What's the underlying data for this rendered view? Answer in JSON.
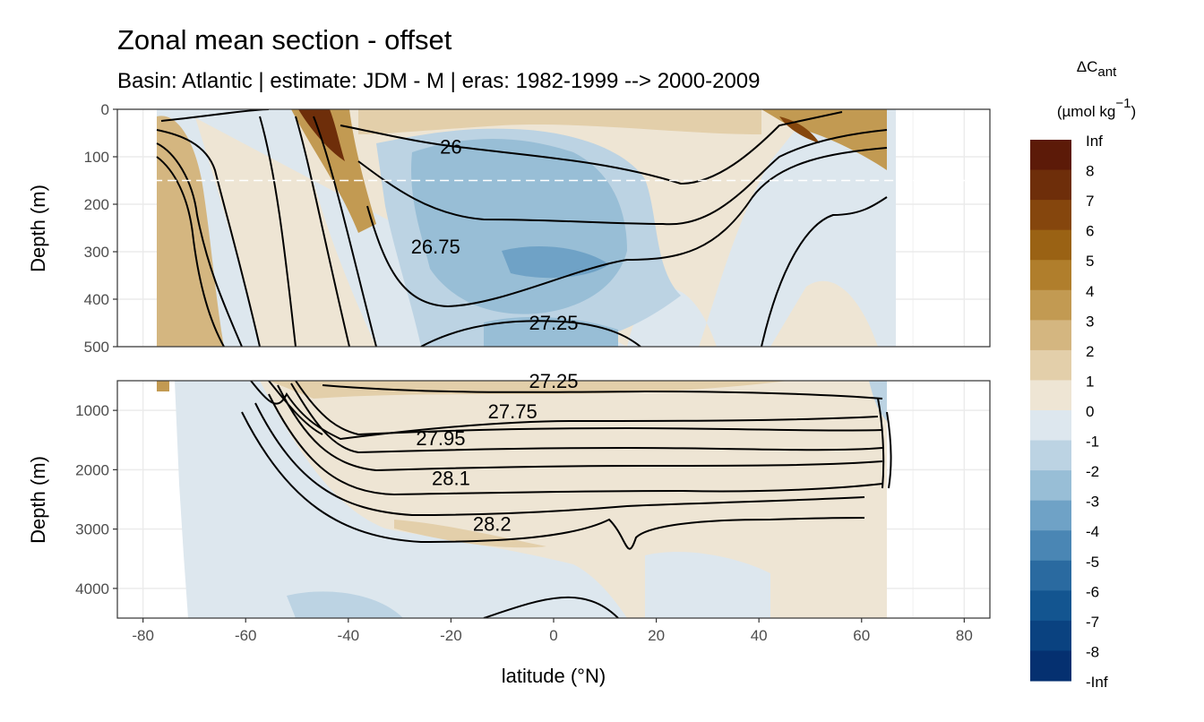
{
  "chart_data": {
    "type": "heatmap",
    "title": "Zonal mean section - offset",
    "subtitle": "Basin: Atlantic | estimate: JDM - M | eras: 1982-1999 --> 2000-2009",
    "xlabel": "latitude (°N)",
    "ylabel": "Depth (m)",
    "xlim": [
      -85,
      85
    ],
    "x_ticks": [
      "-80",
      "-60",
      "-40",
      "-20",
      "0",
      "20",
      "40",
      "60",
      "80"
    ],
    "x_tick_values": [
      -80,
      -60,
      -40,
      -20,
      0,
      20,
      40,
      60,
      80
    ],
    "panels": [
      {
        "name": "upper",
        "ylim": [
          0,
          500
        ],
        "y_ticks": [
          "0",
          "100",
          "200",
          "300",
          "400",
          "500"
        ],
        "y_tick_values": [
          0,
          100,
          200,
          300,
          400,
          500
        ],
        "reference_depth": 150
      },
      {
        "name": "lower",
        "ylim": [
          500,
          4500
        ],
        "y_ticks": [
          "1000",
          "2000",
          "3000",
          "4000"
        ],
        "y_tick_values": [
          1000,
          2000,
          3000,
          4000
        ]
      }
    ],
    "data_range_lat": [
      -78,
      65
    ],
    "contour_labels": [
      {
        "text": "26",
        "lat": -20,
        "depth": 90
      },
      {
        "text": "26.75",
        "lat": -23,
        "depth": 300
      },
      {
        "text": "27.25",
        "lat": 0,
        "depth": 460
      },
      {
        "text": "27.25",
        "lat": 0,
        "depth": 520
      },
      {
        "text": "27.75",
        "lat": -8,
        "depth": 1100
      },
      {
        "text": "27.95",
        "lat": -22,
        "depth": 1560
      },
      {
        "text": "28.1",
        "lat": -20,
        "depth": 2230
      },
      {
        "text": "28.2",
        "lat": -12,
        "depth": 3000
      }
    ],
    "legend": {
      "title_main": "ΔC",
      "title_sub": "ant",
      "unit_prefix": "(µmol kg",
      "unit_sup": "−1",
      "unit_suffix": ")",
      "labels": [
        "Inf",
        "8",
        "7",
        "6",
        "5",
        "4",
        "3",
        "2",
        "1",
        "0",
        "-1",
        "-2",
        "-3",
        "-4",
        "-5",
        "-6",
        "-7",
        "-8",
        "-Inf"
      ],
      "colors": [
        "#5c1a08",
        "#6e2e0a",
        "#85460d",
        "#9a6214",
        "#b07e2c",
        "#c29a52",
        "#d4b680",
        "#e3cfaa",
        "#eee5d4",
        "#dde7ee",
        "#bcd3e3",
        "#98bed6",
        "#6fa2c6",
        "#4a86b4",
        "#2a6aa0",
        "#135590",
        "#0a4280",
        "#053070",
        "#011a5c"
      ]
    }
  }
}
